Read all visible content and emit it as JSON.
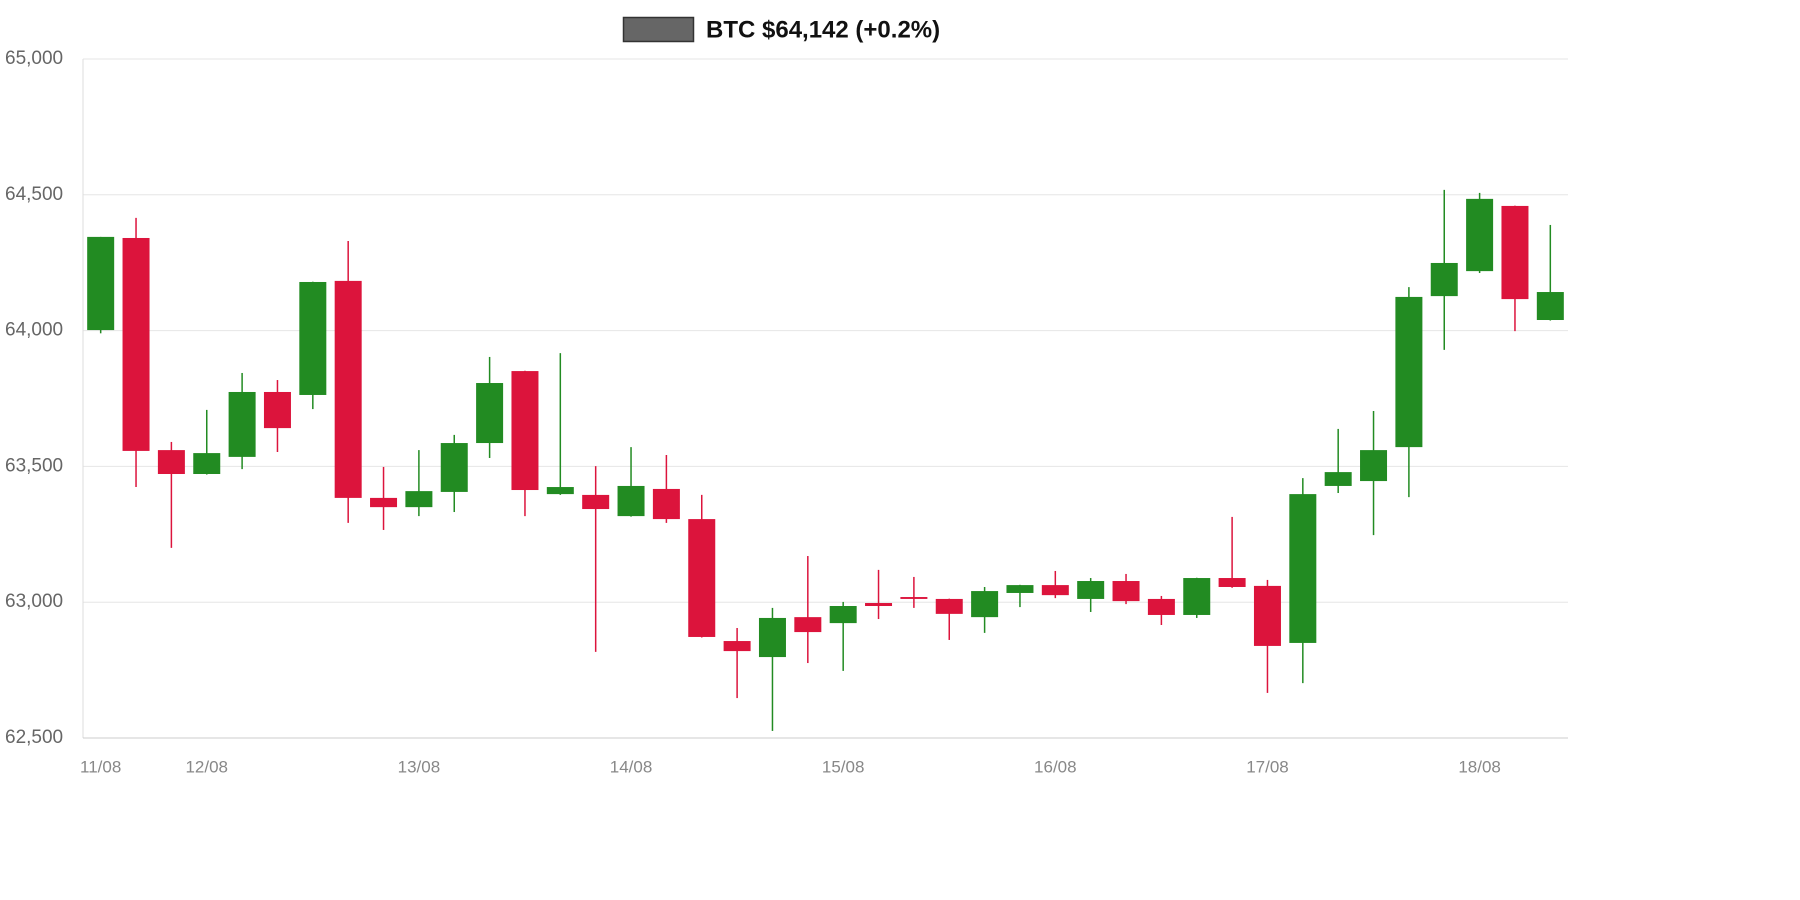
{
  "chart_data": {
    "type": "candlestick",
    "categories": [
      "11/08",
      null,
      null,
      "12/08",
      null,
      null,
      null,
      null,
      null,
      "13/08",
      null,
      null,
      null,
      null,
      null,
      "14/08",
      null,
      null,
      null,
      null,
      null,
      "15/08",
      null,
      null,
      null,
      null,
      null,
      "16/08",
      null,
      null,
      null,
      null,
      null,
      "17/08",
      null,
      null,
      null,
      null,
      null,
      "18/08",
      null,
      null
    ],
    "series": [
      {
        "name": "BTC $64,142 (+0.2%)",
        "color": "#666666",
        "up_color": "#228b22",
        "down_color": "#dc143c",
        "open": [
          64002,
          64341,
          63560,
          63472,
          63535,
          63774,
          63763,
          64183,
          63384,
          63350,
          63406,
          63586,
          63851,
          63398,
          63395,
          63317,
          63417,
          63306,
          62857,
          62798,
          62945,
          62923,
          62997,
          63019,
          63012,
          62945,
          63034,
          63063,
          63012,
          63078,
          63012,
          62953,
          63089,
          63060,
          62850,
          63428,
          63446,
          63571,
          64127,
          64219,
          64459,
          64039
        ],
        "high": [
          64345,
          64415,
          63590,
          63708,
          63844,
          63818,
          64180,
          64330,
          63498,
          63560,
          63616,
          63903,
          63852,
          63917,
          63501,
          63571,
          63542,
          63395,
          62905,
          62979,
          63170,
          63001,
          63119,
          63093,
          63013,
          63056,
          63064,
          63115,
          63089,
          63104,
          63023,
          63090,
          63314,
          63082,
          63457,
          63638,
          63704,
          64160,
          64518,
          64507,
          64460,
          64389
        ],
        "low": [
          63990,
          63424,
          63200,
          63470,
          63490,
          63553,
          63711,
          63292,
          63266,
          63317,
          63332,
          63531,
          63317,
          63395,
          62817,
          63315,
          63292,
          62870,
          62647,
          62526,
          62776,
          62747,
          62938,
          62979,
          62861,
          62887,
          62982,
          63015,
          62964,
          62993,
          62916,
          62942,
          63053,
          62666,
          62702,
          63402,
          63247,
          63387,
          63929,
          64212,
          63998,
          64037
        ],
        "close": [
          64345,
          63557,
          63472,
          63549,
          63774,
          63641,
          64179,
          63384,
          63350,
          63409,
          63586,
          63807,
          63413,
          63424,
          63343,
          63428,
          63306,
          62872,
          62820,
          62942,
          62890,
          62986,
          62986,
          63012,
          62957,
          63041,
          63063,
          63026,
          63078,
          63004,
          62953,
          63089,
          63056,
          62839,
          63398,
          63479,
          63560,
          64124,
          64249,
          64485,
          64116,
          64142
        ]
      }
    ],
    "ylim": [
      62500,
      65000
    ],
    "yticks": [
      {
        "value": 62500,
        "label": "62,500"
      },
      {
        "value": 63000,
        "label": "63,000"
      },
      {
        "value": 63500,
        "label": "63,500"
      },
      {
        "value": 64000,
        "label": "64,000"
      },
      {
        "value": 64500,
        "label": "64,500"
      },
      {
        "value": 65000,
        "label": "65,000"
      }
    ],
    "grid": true
  }
}
